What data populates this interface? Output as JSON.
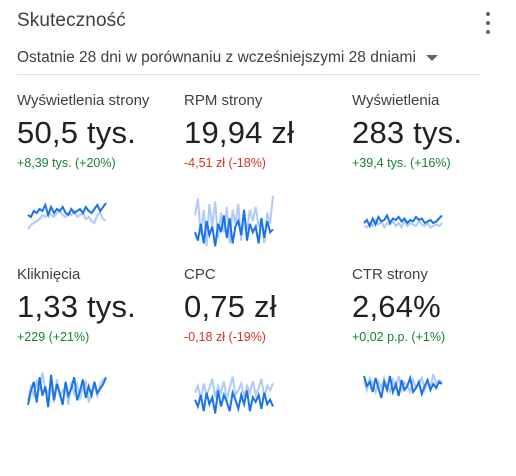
{
  "header": {
    "title": "Skuteczność",
    "more_icon": "more-vert-icon",
    "period_label": "Ostatnie 28 dni w porównaniu z wcześniejszymi 28 dniami",
    "period_icon": "dropdown-caret-icon"
  },
  "colors": {
    "current_series": "#1a73e8",
    "previous_series": "#aecbfa",
    "positive": "#188038",
    "negative": "#d93025"
  },
  "metrics": [
    {
      "label": "Wyświetlenia strony",
      "value": "50,5 tys.",
      "delta": "+8,39 tys. (+20%)",
      "trend": "positive"
    },
    {
      "label": "RPM strony",
      "value": "19,94 zł",
      "delta": "-4,51 zł (-18%)",
      "trend": "negative"
    },
    {
      "label": "Wyświetlenia",
      "value": "283 tys.",
      "delta": "+39,4 tys. (+16%)",
      "trend": "positive"
    },
    {
      "label": "Kliknięcia",
      "value": "1,33 tys.",
      "delta": "+229 (+21%)",
      "trend": "positive"
    },
    {
      "label": "CPC",
      "value": "0,75 zł",
      "delta": "-0,18 zł (-19%)",
      "trend": "negative"
    },
    {
      "label": "CTR strony",
      "value": "2,64%",
      "delta": "+0,02 p.p. (+1%)",
      "trend": "positive"
    }
  ]
}
